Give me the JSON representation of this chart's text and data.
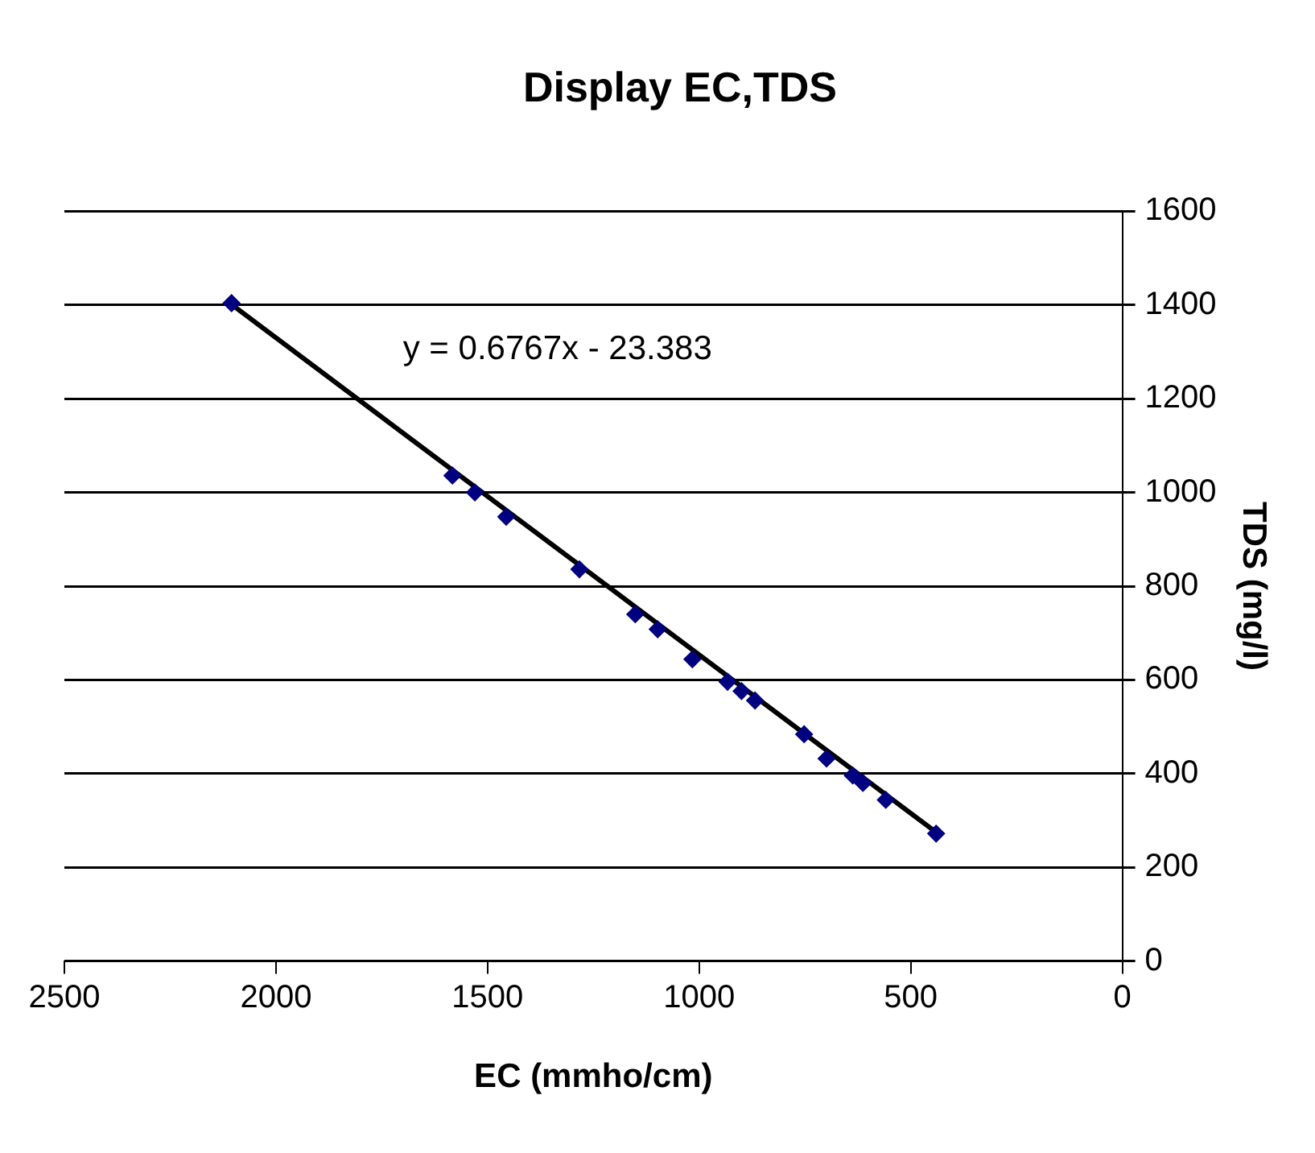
{
  "chart_data": {
    "type": "scatter",
    "title": "Display EC,TDS",
    "xlabel": "EC (mmho/cm)",
    "ylabel": "TDS (mg/l)",
    "xlim": [
      2500,
      0
    ],
    "xticks": [
      2500,
      2000,
      1500,
      1000,
      500,
      0
    ],
    "ylim": [
      0,
      1600
    ],
    "yticks": [
      0,
      200,
      400,
      600,
      800,
      1000,
      1200,
      1400,
      1600
    ],
    "grid": "y",
    "legend": false,
    "annotations": [
      "y = 0.6767x - 23.383"
    ],
    "series": [
      {
        "marker": "diamond",
        "color": "#000080",
        "x": [
          2105,
          1583,
          1530,
          1456,
          1283,
          1151,
          1098,
          1016,
          933,
          900,
          868,
          752,
          699,
          637,
          613,
          559,
          440
        ],
        "values": [
          1404,
          1036,
          1000,
          948,
          836,
          740,
          708,
          644,
          596,
          576,
          556,
          484,
          432,
          396,
          380,
          344,
          272
        ]
      },
      {
        "type": "line",
        "marker": "none",
        "color": "#000000",
        "x": [
          2105,
          430
        ],
        "values": [
          1401,
          268
        ]
      }
    ]
  }
}
